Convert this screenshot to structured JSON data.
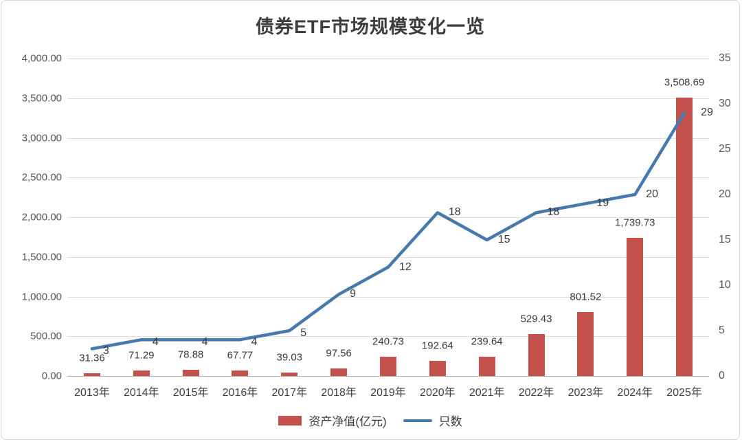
{
  "title": "债券ETF市场规模变化一览",
  "chart_data": {
    "type": "bar+line",
    "categories": [
      "2013年",
      "2014年",
      "2015年",
      "2016年",
      "2017年",
      "2018年",
      "2019年",
      "2020年",
      "2021年",
      "2022年",
      "2023年",
      "2024年",
      "2025年"
    ],
    "series": [
      {
        "name": "资产净值(亿元)",
        "type": "bar",
        "axis": "left",
        "color": "#c4514c",
        "values": [
          31.36,
          71.29,
          78.88,
          67.77,
          39.03,
          97.56,
          240.73,
          192.64,
          239.64,
          529.43,
          801.52,
          1739.73,
          3508.69
        ],
        "labels": [
          "31.36",
          "71.29",
          "78.88",
          "67.77",
          "39.03",
          "97.56",
          "240.73",
          "192.64",
          "239.64",
          "529.43",
          "801.52",
          "1,739.73",
          "3,508.69"
        ]
      },
      {
        "name": "只数",
        "type": "line",
        "axis": "right",
        "color": "#4879ad",
        "values": [
          3,
          4,
          4,
          4,
          5,
          9,
          12,
          18,
          15,
          18,
          19,
          20,
          29
        ],
        "labels": [
          "3",
          "4",
          "4",
          "4",
          "5",
          "9",
          "12",
          "18",
          "15",
          "18",
          "19",
          "20",
          "29"
        ]
      }
    ],
    "left_axis": {
      "min": 0,
      "max": 4000,
      "step": 500,
      "tick_labels": [
        "0.00",
        "500.00",
        "1,000.00",
        "1,500.00",
        "2,000.00",
        "2,500.00",
        "3,000.00",
        "3,500.00",
        "4,000.00"
      ]
    },
    "right_axis": {
      "min": 0,
      "max": 35,
      "step": 5,
      "tick_labels": [
        "0",
        "5",
        "10",
        "15",
        "20",
        "25",
        "30",
        "35"
      ]
    },
    "grid": true,
    "legend_position": "bottom"
  }
}
